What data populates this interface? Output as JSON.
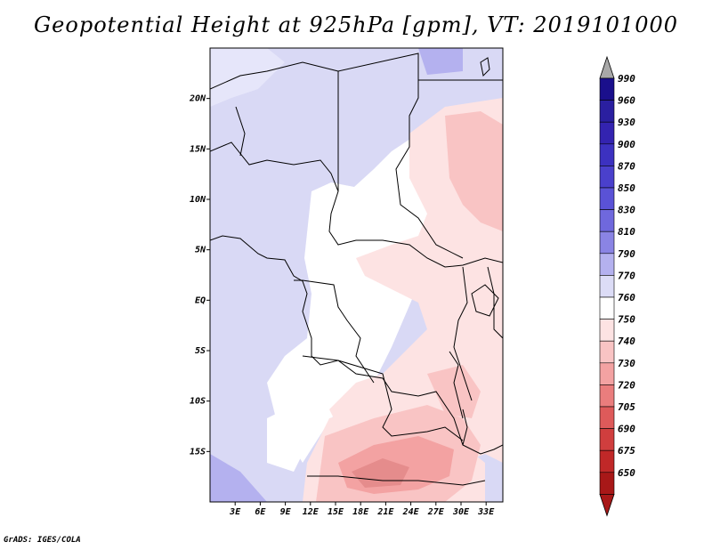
{
  "title": "Geopotential Height at 925hPa [gpm], VT: 2019101000",
  "credit": "GrADS: IGES/COLA",
  "map": {
    "lat_labels": [
      "20N",
      "15N",
      "10N",
      "5N",
      "EQ",
      "5S",
      "10S",
      "15S"
    ],
    "lat_values": [
      20,
      15,
      10,
      5,
      0,
      -5,
      -10,
      -15
    ],
    "lon_labels": [
      "3E",
      "6E",
      "9E",
      "12E",
      "15E",
      "18E",
      "21E",
      "24E",
      "27E",
      "30E",
      "33E"
    ],
    "lon_values": [
      3,
      6,
      9,
      12,
      15,
      18,
      21,
      24,
      27,
      30,
      33
    ],
    "lon_range": [
      0,
      35
    ],
    "lat_range": [
      -20,
      25
    ]
  },
  "colorbar": {
    "labels": [
      "990",
      "960",
      "930",
      "900",
      "870",
      "850",
      "830",
      "810",
      "790",
      "770",
      "760",
      "750",
      "740",
      "730",
      "720",
      "705",
      "690",
      "675",
      "650"
    ],
    "colors": [
      "#1a0f8c",
      "#2a1fa0",
      "#3323b0",
      "#3c31c0",
      "#4a40cc",
      "#5a52d6",
      "#6f68dd",
      "#8a84e4",
      "#b4b1ef",
      "#dcdcf6",
      "#ffffff",
      "#fde3e3",
      "#f9c4c4",
      "#f3a2a2",
      "#ea7d7d",
      "#de5a5a",
      "#d03e3e",
      "#c02828",
      "#a81818"
    ],
    "top_arrow_color": "#a8a8a8",
    "bottom_arrow_color": "#a81818"
  },
  "palette": {
    "ocean_blue": "#d9d9f5",
    "deep_blue": "#b4b1ef",
    "neutral": "#ffffff",
    "light_red": "#fde3e3",
    "mid_red": "#f3b6b6",
    "dark_red": "#e58c8c"
  }
}
